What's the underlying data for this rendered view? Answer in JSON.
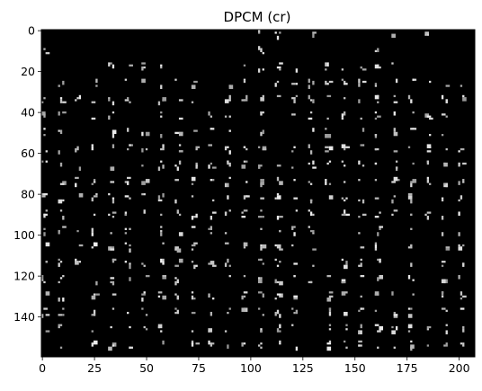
{
  "chart_data": {
    "type": "heatmap",
    "title": "DPCM (cr)",
    "xlabel": "",
    "ylabel": "",
    "xlim": [
      0,
      208
    ],
    "ylim": [
      0,
      160
    ],
    "y_axis_inverted": true,
    "grid": false,
    "colormap": "gray",
    "background_color": "#000000",
    "dot_color": "#c8c8c8",
    "x_ticks": [
      "0",
      "25",
      "50",
      "75",
      "100",
      "125",
      "150",
      "175",
      "200"
    ],
    "y_ticks": [
      "0",
      "20",
      "40",
      "60",
      "80",
      "100",
      "120",
      "140"
    ],
    "block_size": 8,
    "description_level": "sparse bright dots in 8x8 block pattern"
  }
}
